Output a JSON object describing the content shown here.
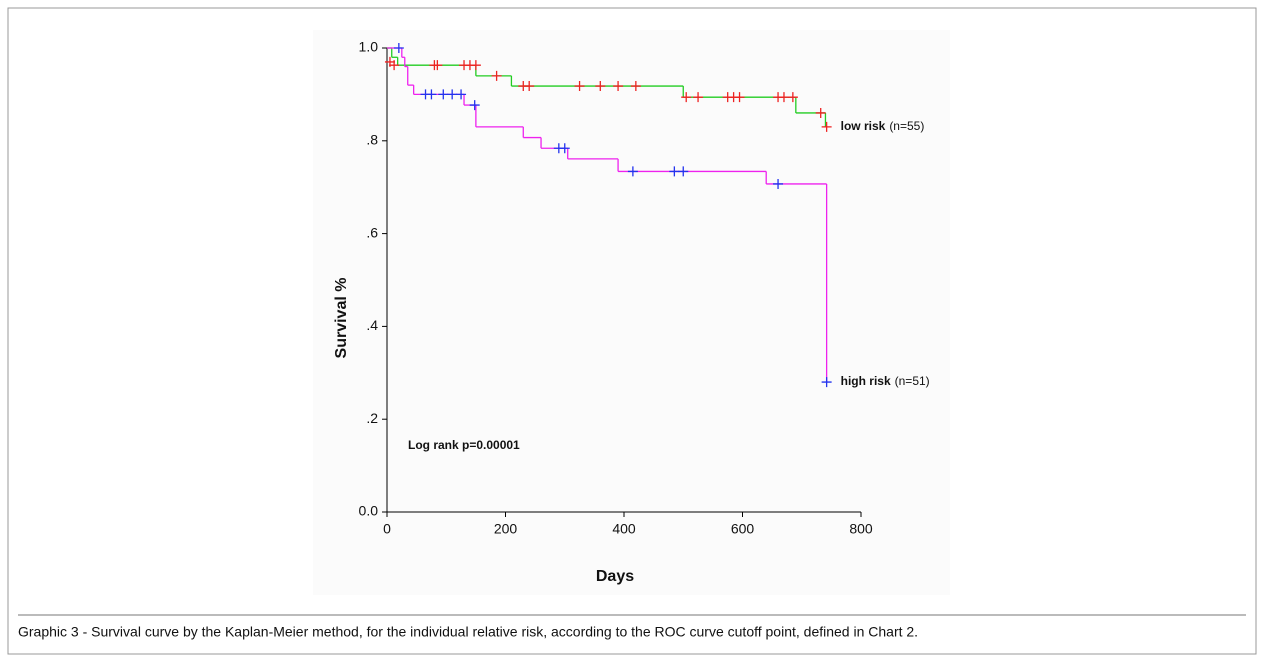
{
  "chart_data": {
    "type": "step",
    "xlabel": "Days",
    "ylabel": "Survival %",
    "annotation": "Log rank  p=0.00001",
    "caption": "Graphic 3 - Survival curve by the Kaplan-Meier method, for the individual relative risk, according to the ROC curve cutoff point, defined in Chart 2.",
    "xlim": [
      0,
      800
    ],
    "ylim": [
      0,
      1
    ],
    "xticks": [
      0,
      200,
      400,
      600,
      800
    ],
    "yticks": [
      {
        "value": 0,
        "label": "0.0"
      },
      {
        "value": 0.2,
        "label": ".2"
      },
      {
        "value": 0.4,
        "label": ".4"
      },
      {
        "value": 0.6,
        "label": ".6"
      },
      {
        "value": 0.8,
        "label": ".8"
      },
      {
        "value": 1,
        "label": "1.0"
      }
    ],
    "series": [
      {
        "name": "low risk",
        "n_label": "(n=55)",
        "color": "#22cc22",
        "censor_color": "#ee2222",
        "x": [
          0,
          8,
          18,
          150,
          210,
          500,
          690,
          740
        ],
        "values": [
          1,
          0.98,
          0.963,
          0.94,
          0.918,
          0.894,
          0.86,
          0.83
        ],
        "censored": {
          "x": [
            5,
            12,
            80,
            85,
            130,
            140,
            150,
            185,
            230,
            240,
            325,
            360,
            390,
            420,
            505,
            525,
            575,
            585,
            595,
            660,
            670,
            685,
            732,
            742
          ],
          "values": [
            0.97,
            0.963,
            0.963,
            0.963,
            0.963,
            0.963,
            0.963,
            0.94,
            0.918,
            0.918,
            0.918,
            0.918,
            0.918,
            0.918,
            0.894,
            0.894,
            0.894,
            0.894,
            0.894,
            0.894,
            0.894,
            0.894,
            0.86,
            0.83
          ]
        }
      },
      {
        "name": "high risk",
        "n_label": "(n=51)",
        "color": "#ee22ee",
        "censor_color": "#2233ee",
        "x": [
          0,
          25,
          30,
          35,
          45,
          130,
          150,
          230,
          260,
          305,
          390,
          640,
          742
        ],
        "values": [
          1,
          0.98,
          0.96,
          0.92,
          0.9,
          0.877,
          0.83,
          0.807,
          0.784,
          0.761,
          0.734,
          0.707,
          0.28
        ],
        "censored": {
          "x": [
            20,
            65,
            75,
            95,
            110,
            125,
            148,
            290,
            300,
            415,
            485,
            500,
            660,
            742
          ],
          "values": [
            1,
            0.9,
            0.9,
            0.9,
            0.9,
            0.9,
            0.877,
            0.784,
            0.784,
            0.734,
            0.734,
            0.734,
            0.707,
            0.28
          ]
        }
      }
    ]
  }
}
